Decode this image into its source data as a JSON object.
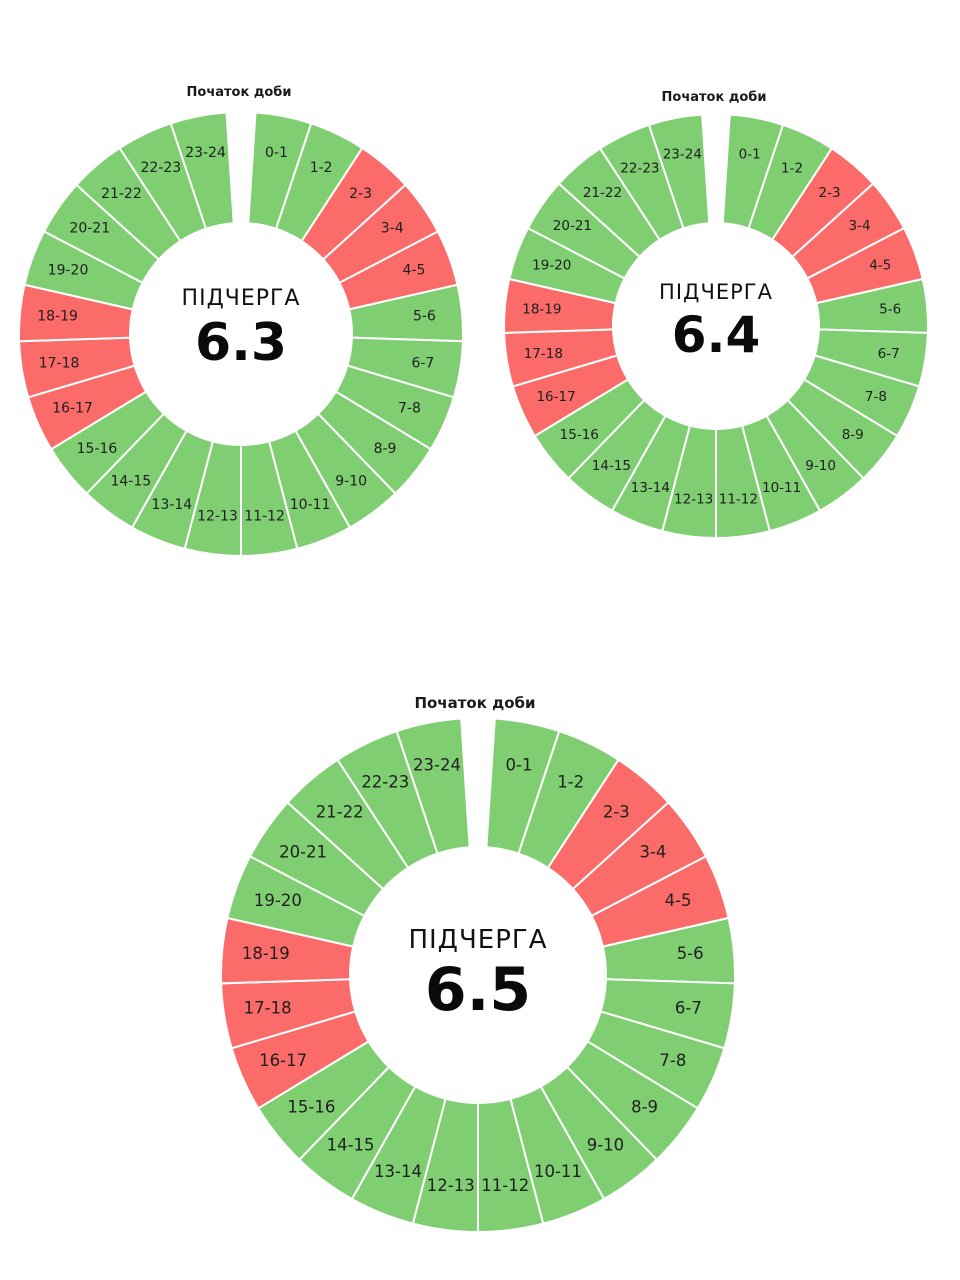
{
  "colors": {
    "on": "#7fce72",
    "off": "#fb6b6a",
    "gap": "#ffffff"
  },
  "slot_labels": [
    "0-1",
    "1-2",
    "2-3",
    "3-4",
    "4-5",
    "5-6",
    "6-7",
    "7-8",
    "8-9",
    "9-10",
    "10-11",
    "11-12",
    "12-13",
    "13-14",
    "14-15",
    "15-16",
    "16-17",
    "17-18",
    "18-19",
    "19-20",
    "20-21",
    "21-22",
    "22-23",
    "23-24"
  ],
  "chart_data": [
    {
      "type": "pie",
      "start_label": "Початок доби",
      "queue_label": "ПІДЧЕРГА",
      "queue_number": "6.3",
      "values": [
        1,
        1,
        1,
        1,
        1,
        1,
        1,
        1,
        1,
        1,
        1,
        1,
        1,
        1,
        1,
        1,
        1,
        1,
        1,
        1,
        1,
        1,
        1,
        1
      ],
      "status": [
        "on",
        "on",
        "off",
        "off",
        "off",
        "on",
        "on",
        "on",
        "on",
        "on",
        "on",
        "on",
        "on",
        "on",
        "on",
        "on",
        "off",
        "off",
        "off",
        "on",
        "on",
        "on",
        "on",
        "on"
      ]
    },
    {
      "type": "pie",
      "start_label": "Початок доби",
      "queue_label": "ПІДЧЕРГА",
      "queue_number": "6.4",
      "values": [
        1,
        1,
        1,
        1,
        1,
        1,
        1,
        1,
        1,
        1,
        1,
        1,
        1,
        1,
        1,
        1,
        1,
        1,
        1,
        1,
        1,
        1,
        1,
        1
      ],
      "status": [
        "on",
        "on",
        "off",
        "off",
        "off",
        "on",
        "on",
        "on",
        "on",
        "on",
        "on",
        "on",
        "on",
        "on",
        "on",
        "on",
        "off",
        "off",
        "off",
        "on",
        "on",
        "on",
        "on",
        "on"
      ]
    },
    {
      "type": "pie",
      "start_label": "Початок доби",
      "queue_label": "ПІДЧЕРГА",
      "queue_number": "6.5",
      "values": [
        1,
        1,
        1,
        1,
        1,
        1,
        1,
        1,
        1,
        1,
        1,
        1,
        1,
        1,
        1,
        1,
        1,
        1,
        1,
        1,
        1,
        1,
        1,
        1
      ],
      "status": [
        "on",
        "on",
        "off",
        "off",
        "off",
        "on",
        "on",
        "on",
        "on",
        "on",
        "on",
        "on",
        "on",
        "on",
        "on",
        "on",
        "off",
        "off",
        "off",
        "on",
        "on",
        "on",
        "on",
        "on"
      ]
    }
  ]
}
